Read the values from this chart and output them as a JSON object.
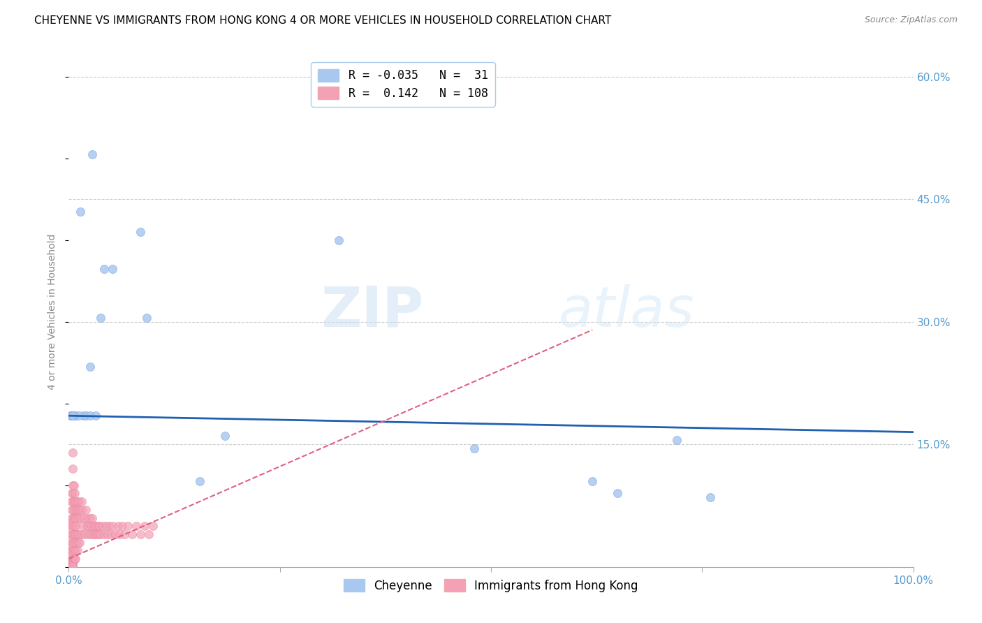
{
  "title": "CHEYENNE VS IMMIGRANTS FROM HONG KONG 4 OR MORE VEHICLES IN HOUSEHOLD CORRELATION CHART",
  "source": "Source: ZipAtlas.com",
  "ylabel": "4 or more Vehicles in Household",
  "xlim": [
    0.0,
    1.0
  ],
  "ylim": [
    0.0,
    0.625
  ],
  "xticks": [
    0.0,
    0.25,
    0.5,
    0.75,
    1.0
  ],
  "xtick_labels": [
    "0.0%",
    "",
    "",
    "",
    "100.0%"
  ],
  "yticks_right": [
    0.0,
    0.15,
    0.3,
    0.45,
    0.6
  ],
  "ytick_right_labels": [
    "",
    "15.0%",
    "30.0%",
    "45.0%",
    "60.0%"
  ],
  "watermark_zip": "ZIP",
  "watermark_atlas": "atlas",
  "legend_blue_R": "-0.035",
  "legend_blue_N": "31",
  "legend_pink_R": "0.142",
  "legend_pink_N": "108",
  "blue_scatter_x": [
    0.028,
    0.014,
    0.042,
    0.052,
    0.038,
    0.092,
    0.005,
    0.002,
    0.018,
    0.085,
    0.32,
    0.185,
    0.155,
    0.62,
    0.65,
    0.72,
    0.76,
    0.48,
    0.008,
    0.012,
    0.003,
    0.025,
    0.005,
    0.005,
    0.005,
    0.02,
    0.025,
    0.032,
    0.005,
    0.005,
    0.005
  ],
  "blue_scatter_y": [
    0.505,
    0.435,
    0.365,
    0.365,
    0.305,
    0.305,
    0.185,
    0.185,
    0.185,
    0.41,
    0.4,
    0.16,
    0.105,
    0.105,
    0.09,
    0.155,
    0.085,
    0.145,
    0.185,
    0.185,
    0.185,
    0.245,
    0.185,
    0.185,
    0.185,
    0.185,
    0.185,
    0.185,
    0.185,
    0.185,
    0.185
  ],
  "pink_scatter_x": [
    0.003,
    0.003,
    0.003,
    0.003,
    0.003,
    0.004,
    0.004,
    0.004,
    0.004,
    0.004,
    0.004,
    0.004,
    0.005,
    0.005,
    0.005,
    0.005,
    0.005,
    0.005,
    0.005,
    0.005,
    0.005,
    0.005,
    0.005,
    0.005,
    0.005,
    0.005,
    0.005,
    0.005,
    0.005,
    0.005,
    0.005,
    0.005,
    0.005,
    0.005,
    0.005,
    0.005,
    0.006,
    0.006,
    0.006,
    0.006,
    0.006,
    0.007,
    0.007,
    0.007,
    0.007,
    0.007,
    0.008,
    0.008,
    0.008,
    0.008,
    0.008,
    0.009,
    0.009,
    0.009,
    0.01,
    0.01,
    0.01,
    0.01,
    0.011,
    0.011,
    0.012,
    0.012,
    0.013,
    0.013,
    0.014,
    0.015,
    0.015,
    0.016,
    0.017,
    0.018,
    0.019,
    0.02,
    0.021,
    0.022,
    0.023,
    0.024,
    0.025,
    0.026,
    0.027,
    0.028,
    0.029,
    0.03,
    0.031,
    0.032,
    0.033,
    0.034,
    0.035,
    0.036,
    0.038,
    0.04,
    0.042,
    0.044,
    0.046,
    0.048,
    0.05,
    0.052,
    0.055,
    0.058,
    0.06,
    0.063,
    0.066,
    0.07,
    0.075,
    0.08,
    0.085,
    0.09,
    0.095,
    0.1
  ],
  "pink_scatter_y": [
    0.08,
    0.06,
    0.04,
    0.02,
    0.01,
    0.09,
    0.07,
    0.05,
    0.03,
    0.02,
    0.01,
    0.005,
    0.14,
    0.12,
    0.1,
    0.09,
    0.08,
    0.07,
    0.06,
    0.055,
    0.05,
    0.045,
    0.04,
    0.035,
    0.03,
    0.025,
    0.02,
    0.015,
    0.01,
    0.008,
    0.006,
    0.005,
    0.004,
    0.003,
    0.002,
    0.001,
    0.1,
    0.08,
    0.06,
    0.04,
    0.02,
    0.09,
    0.07,
    0.05,
    0.03,
    0.01,
    0.08,
    0.06,
    0.04,
    0.02,
    0.01,
    0.07,
    0.05,
    0.03,
    0.08,
    0.06,
    0.04,
    0.02,
    0.07,
    0.03,
    0.08,
    0.04,
    0.07,
    0.03,
    0.06,
    0.08,
    0.04,
    0.07,
    0.05,
    0.06,
    0.04,
    0.07,
    0.05,
    0.06,
    0.04,
    0.05,
    0.06,
    0.04,
    0.05,
    0.06,
    0.04,
    0.05,
    0.04,
    0.05,
    0.04,
    0.05,
    0.04,
    0.05,
    0.04,
    0.05,
    0.04,
    0.05,
    0.04,
    0.05,
    0.04,
    0.05,
    0.04,
    0.05,
    0.04,
    0.05,
    0.04,
    0.05,
    0.04,
    0.05,
    0.04,
    0.05,
    0.04,
    0.05
  ],
  "blue_line_x": [
    0.0,
    1.0
  ],
  "blue_line_y": [
    0.185,
    0.165
  ],
  "pink_line_x": [
    0.0,
    0.62
  ],
  "pink_line_y": [
    0.01,
    0.29
  ],
  "scatter_size": 75,
  "blue_color": "#a8c8f0",
  "pink_color": "#f4a0b5",
  "blue_dot_edge": "#88aadd",
  "pink_dot_edge": "#e888a0",
  "blue_line_color": "#2060b0",
  "pink_line_color": "#e06080",
  "grid_color": "#cccccc",
  "background_color": "#ffffff",
  "title_fontsize": 11,
  "axis_label_fontsize": 10,
  "tick_fontsize": 11,
  "right_tick_color": "#5599cc"
}
